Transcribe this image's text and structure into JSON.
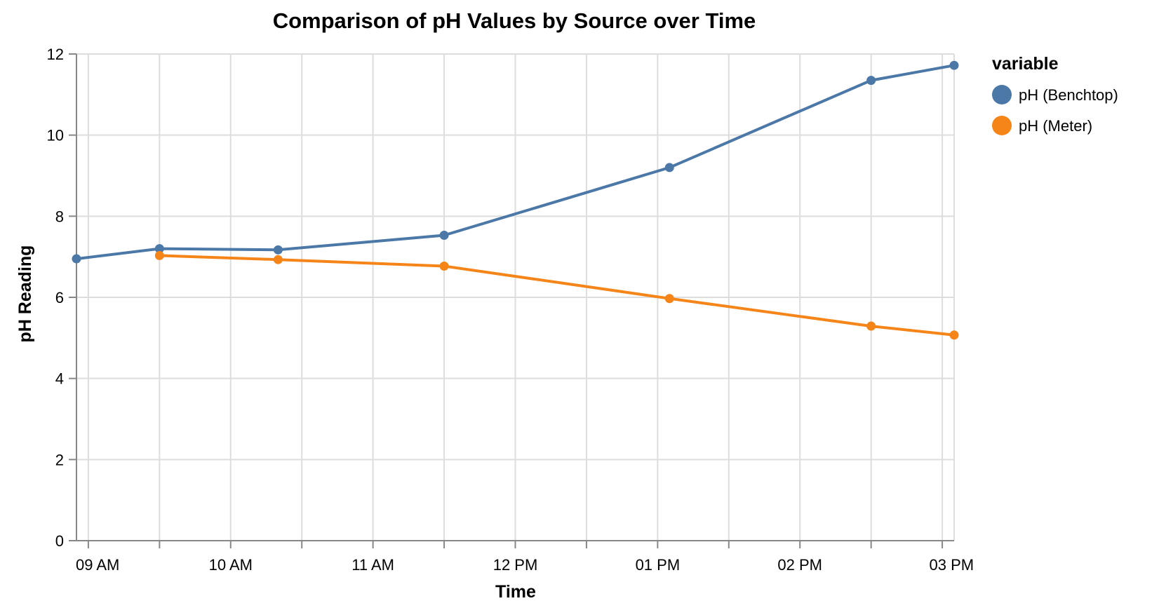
{
  "chart_data": {
    "type": "line",
    "title": "Comparison of pH Values by Source over Time",
    "xlabel": "Time",
    "ylabel": "pH Reading",
    "x_type": "time",
    "xlim": [
      "08:55",
      "15:05"
    ],
    "ylim": [
      0,
      12
    ],
    "y_ticks": [
      0,
      2,
      4,
      6,
      8,
      10,
      12
    ],
    "x_ticks": [
      {
        "time": "09:00",
        "label": "09 AM"
      },
      {
        "time": "10:00",
        "label": "10 AM"
      },
      {
        "time": "11:00",
        "label": "11 AM"
      },
      {
        "time": "12:00",
        "label": "12 PM"
      },
      {
        "time": "13:00",
        "label": "01 PM"
      },
      {
        "time": "14:00",
        "label": "02 PM"
      },
      {
        "time": "15:00",
        "label": "03 PM"
      }
    ],
    "grid": true,
    "legend": {
      "title": "variable",
      "position": "right"
    },
    "series": [
      {
        "name": "pH (Benchtop)",
        "color": "#4c78a8",
        "points": [
          {
            "x": "08:55",
            "y": 6.95
          },
          {
            "x": "09:30",
            "y": 7.2
          },
          {
            "x": "10:20",
            "y": 7.17
          },
          {
            "x": "11:30",
            "y": 7.53
          },
          {
            "x": "13:05",
            "y": 9.2
          },
          {
            "x": "14:30",
            "y": 11.35
          },
          {
            "x": "15:05",
            "y": 11.72
          }
        ]
      },
      {
        "name": "pH (Meter)",
        "color": "#f58518",
        "points": [
          {
            "x": "09:30",
            "y": 7.03
          },
          {
            "x": "10:20",
            "y": 6.93
          },
          {
            "x": "11:30",
            "y": 6.77
          },
          {
            "x": "13:05",
            "y": 5.97
          },
          {
            "x": "14:30",
            "y": 5.29
          },
          {
            "x": "15:05",
            "y": 5.07
          }
        ]
      }
    ]
  }
}
